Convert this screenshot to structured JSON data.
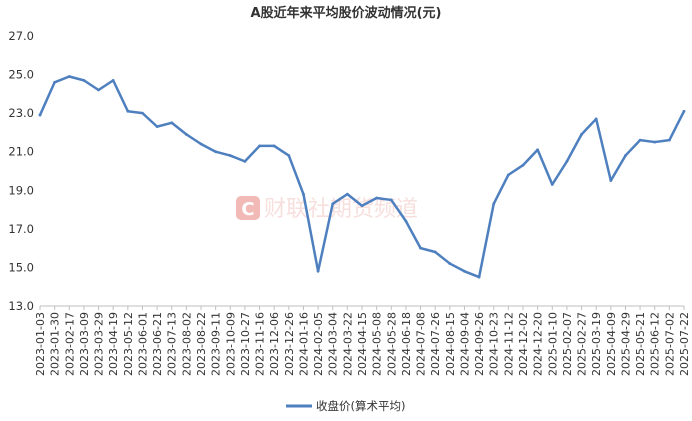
{
  "chart_data": {
    "type": "line",
    "title": "A股近年来平均股价波动情况(元)",
    "xlabel": "",
    "ylabel": "",
    "ylim": [
      13.0,
      27.0
    ],
    "yticks": [
      "13.0",
      "15.0",
      "17.0",
      "19.0",
      "21.0",
      "23.0",
      "25.0",
      "27.0"
    ],
    "ytick_values": [
      13,
      15,
      17,
      19,
      21,
      23,
      25,
      27
    ],
    "xticks": [
      "2023-01-03",
      "2023-01-30",
      "2023-02-17",
      "2023-03-09",
      "2023-03-29",
      "2023-04-19",
      "2023-05-12",
      "2023-06-01",
      "2023-06-21",
      "2023-07-13",
      "2023-08-02",
      "2023-08-22",
      "2023-09-11",
      "2023-10-09",
      "2023-10-27",
      "2023-11-16",
      "2023-12-06",
      "2023-12-26",
      "2024-01-16",
      "2024-02-05",
      "2024-03-04",
      "2024-03-22",
      "2024-04-15",
      "2024-05-08",
      "2024-05-28",
      "2024-06-18",
      "2024-07-08",
      "2024-07-26",
      "2024-08-15",
      "2024-09-04",
      "2024-09-26",
      "2024-10-23",
      "2024-11-12",
      "2024-12-02",
      "2024-12-20",
      "2025-01-10",
      "2025-02-07",
      "2025-02-27",
      "2025-03-19",
      "2025-04-09",
      "2025-04-29",
      "2025-05-21",
      "2025-06-12",
      "2025-07-02",
      "2025-07-22"
    ],
    "grid": false,
    "legend_position": "bottom",
    "series": [
      {
        "name": "收盘价(算术平均)",
        "color": "#4e7fbf",
        "x": [
          "2023-01-03",
          "2023-01-30",
          "2023-02-17",
          "2023-03-09",
          "2023-03-29",
          "2023-04-19",
          "2023-05-12",
          "2023-06-01",
          "2023-06-21",
          "2023-07-13",
          "2023-08-02",
          "2023-08-22",
          "2023-09-11",
          "2023-10-09",
          "2023-10-27",
          "2023-11-16",
          "2023-12-06",
          "2023-12-26",
          "2024-01-16",
          "2024-02-05",
          "2024-03-04",
          "2024-03-22",
          "2024-04-15",
          "2024-05-08",
          "2024-05-28",
          "2024-06-18",
          "2024-07-08",
          "2024-07-26",
          "2024-08-15",
          "2024-09-04",
          "2024-09-26",
          "2024-10-23",
          "2024-11-12",
          "2024-12-02",
          "2024-12-20",
          "2025-01-10",
          "2025-02-07",
          "2025-02-27",
          "2025-03-19",
          "2025-04-09",
          "2025-04-29",
          "2025-05-21",
          "2025-06-12",
          "2025-07-02",
          "2025-07-22"
        ],
        "values": [
          22.9,
          24.6,
          24.9,
          24.7,
          24.2,
          24.7,
          23.1,
          23.0,
          22.3,
          22.5,
          21.9,
          21.4,
          21.0,
          20.8,
          20.5,
          21.3,
          21.3,
          20.8,
          18.8,
          14.8,
          18.3,
          18.8,
          18.2,
          18.6,
          18.5,
          17.4,
          16.0,
          15.8,
          15.2,
          14.8,
          14.5,
          18.3,
          19.8,
          20.3,
          21.1,
          19.3,
          20.5,
          21.9,
          22.7,
          19.5,
          20.8,
          21.6,
          21.5,
          21.6,
          23.1
        ]
      }
    ]
  },
  "legend": {
    "label": "收盘价(算术平均)"
  },
  "watermark": {
    "text": "财联社期货频道",
    "logo_letter": "C"
  }
}
